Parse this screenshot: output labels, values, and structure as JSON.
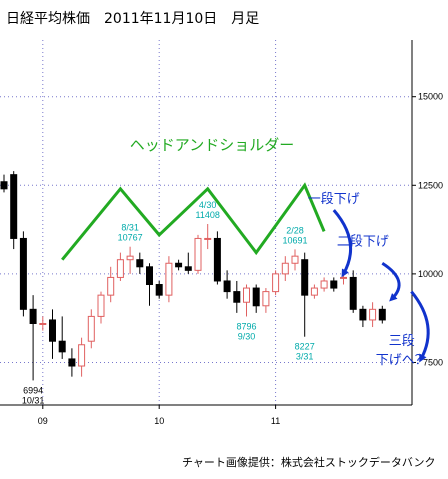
{
  "title": "日経平均株価　2011年11月10日　月足",
  "credit": "チャート画像提供：株式会社ストックデータバンク",
  "chart_data": {
    "type": "candlestick",
    "ylim": [
      6300,
      16600
    ],
    "y_ticks": [
      15000,
      12500,
      10000,
      7500
    ],
    "x_ticks": [
      {
        "label": "09",
        "index": 4
      },
      {
        "label": "10",
        "index": 16
      },
      {
        "label": "11",
        "index": 28
      }
    ],
    "candles": [
      {
        "o": 12600,
        "h": 12800,
        "l": 12300,
        "c": 12400
      },
      {
        "o": 12800,
        "h": 12900,
        "l": 10700,
        "c": 11000
      },
      {
        "o": 11000,
        "h": 11200,
        "l": 8800,
        "c": 9000
      },
      {
        "o": 9000,
        "h": 9400,
        "l": 6994,
        "c": 8600
      },
      {
        "o": 8600,
        "h": 8800,
        "l": 8400,
        "c": 8600
      },
      {
        "o": 8700,
        "h": 9000,
        "l": 7600,
        "c": 8100
      },
      {
        "o": 8100,
        "h": 8800,
        "l": 7600,
        "c": 7800
      },
      {
        "o": 7600,
        "h": 7900,
        "l": 7100,
        "c": 7400
      },
      {
        "o": 7400,
        "h": 8200,
        "l": 7100,
        "c": 8000
      },
      {
        "o": 8100,
        "h": 9000,
        "l": 7900,
        "c": 8800
      },
      {
        "o": 8800,
        "h": 9500,
        "l": 8600,
        "c": 9400
      },
      {
        "o": 9400,
        "h": 10200,
        "l": 9200,
        "c": 9900
      },
      {
        "o": 9900,
        "h": 10600,
        "l": 9800,
        "c": 10400
      },
      {
        "o": 10400,
        "h": 10767,
        "l": 10000,
        "c": 10500
      },
      {
        "o": 10400,
        "h": 10600,
        "l": 10000,
        "c": 10200
      },
      {
        "o": 10200,
        "h": 10300,
        "l": 9100,
        "c": 9700
      },
      {
        "o": 9700,
        "h": 9800,
        "l": 9300,
        "c": 9400
      },
      {
        "o": 9400,
        "h": 10500,
        "l": 9200,
        "c": 10300
      },
      {
        "o": 10300,
        "h": 10400,
        "l": 10100,
        "c": 10200
      },
      {
        "o": 10200,
        "h": 10600,
        "l": 10000,
        "c": 10100
      },
      {
        "o": 10100,
        "h": 11100,
        "l": 10000,
        "c": 11000
      },
      {
        "o": 11000,
        "h": 11408,
        "l": 10700,
        "c": 11000
      },
      {
        "o": 11000,
        "h": 11200,
        "l": 9700,
        "c": 9800
      },
      {
        "o": 9800,
        "h": 10100,
        "l": 9300,
        "c": 9500
      },
      {
        "o": 9500,
        "h": 9800,
        "l": 8900,
        "c": 9200
      },
      {
        "o": 9200,
        "h": 9700,
        "l": 8796,
        "c": 9600
      },
      {
        "o": 9600,
        "h": 9700,
        "l": 8900,
        "c": 9100
      },
      {
        "o": 9100,
        "h": 9600,
        "l": 8900,
        "c": 9500
      },
      {
        "o": 9500,
        "h": 10100,
        "l": 9400,
        "c": 10000
      },
      {
        "o": 10000,
        "h": 10500,
        "l": 9800,
        "c": 10300
      },
      {
        "o": 10300,
        "h": 10691,
        "l": 10100,
        "c": 10500
      },
      {
        "o": 10400,
        "h": 10600,
        "l": 8227,
        "c": 9400
      },
      {
        "o": 9400,
        "h": 9700,
        "l": 9300,
        "c": 9600
      },
      {
        "o": 9600,
        "h": 9900,
        "l": 9500,
        "c": 9800
      },
      {
        "o": 9800,
        "h": 9900,
        "l": 9500,
        "c": 9600
      },
      {
        "o": 9900,
        "h": 10000,
        "l": 9700,
        "c": 9900
      },
      {
        "o": 9900,
        "h": 10100,
        "l": 8900,
        "c": 9000
      },
      {
        "o": 9000,
        "h": 9100,
        "l": 8500,
        "c": 8700
      },
      {
        "o": 8700,
        "h": 9200,
        "l": 8500,
        "c": 9000
      },
      {
        "o": 9000,
        "h": 9100,
        "l": 8600,
        "c": 8700
      }
    ],
    "annotations": [
      {
        "lines": [
          "6994",
          "10/31"
        ],
        "index": 3,
        "value": 6994,
        "pos": "below",
        "color": "#000000"
      },
      {
        "lines": [
          "8/31",
          "10767"
        ],
        "index": 13,
        "value": 10767,
        "pos": "above",
        "color": "#00aaaa"
      },
      {
        "lines": [
          "4/30",
          "11408"
        ],
        "index": 21,
        "value": 11408,
        "pos": "above",
        "color": "#00aaaa"
      },
      {
        "lines": [
          "8796",
          "9/30"
        ],
        "index": 25,
        "value": 8796,
        "pos": "below",
        "color": "#00aaaa"
      },
      {
        "lines": [
          "2/28",
          "10691"
        ],
        "index": 30,
        "value": 10691,
        "pos": "above",
        "color": "#00aaaa"
      },
      {
        "lines": [
          "8227",
          "3/31"
        ],
        "index": 31,
        "value": 8227,
        "pos": "below",
        "color": "#00aaaa"
      }
    ],
    "pattern": {
      "label": "ヘッドアンドショルダー",
      "color": "#22aa22",
      "points": [
        {
          "index": 6,
          "value": 10400
        },
        {
          "index": 12,
          "value": 12400
        },
        {
          "index": 16,
          "value": 11100
        },
        {
          "index": 21,
          "value": 12400
        },
        {
          "index": 26,
          "value": 10600
        },
        {
          "index": 31,
          "value": 12500
        },
        {
          "index": 33,
          "value": 11200
        }
      ]
    },
    "callouts": {
      "color": "#1133cc",
      "labels": [
        {
          "text": "一段下げ",
          "index": 34,
          "value": 12000
        },
        {
          "text": "二段下げ",
          "index": 37,
          "value": 10800
        },
        {
          "text": "三段",
          "index": 41,
          "value": 8000
        },
        {
          "text": "下げへ？",
          "index": 41,
          "value": 7450
        }
      ],
      "arrows": [
        {
          "from": {
            "index": 34,
            "value": 11800
          },
          "to": {
            "index": 35,
            "value": 10000
          }
        },
        {
          "from": {
            "index": 39,
            "value": 10300
          },
          "to": {
            "index": 40,
            "value": 9300
          }
        },
        {
          "from": {
            "index": 42,
            "value": 9500
          },
          "to": {
            "index": 43,
            "value": 7600
          }
        }
      ]
    },
    "colors": {
      "up": "#e06060",
      "down": "#000000",
      "grid": "#7777cc",
      "axis": "#000000"
    }
  }
}
